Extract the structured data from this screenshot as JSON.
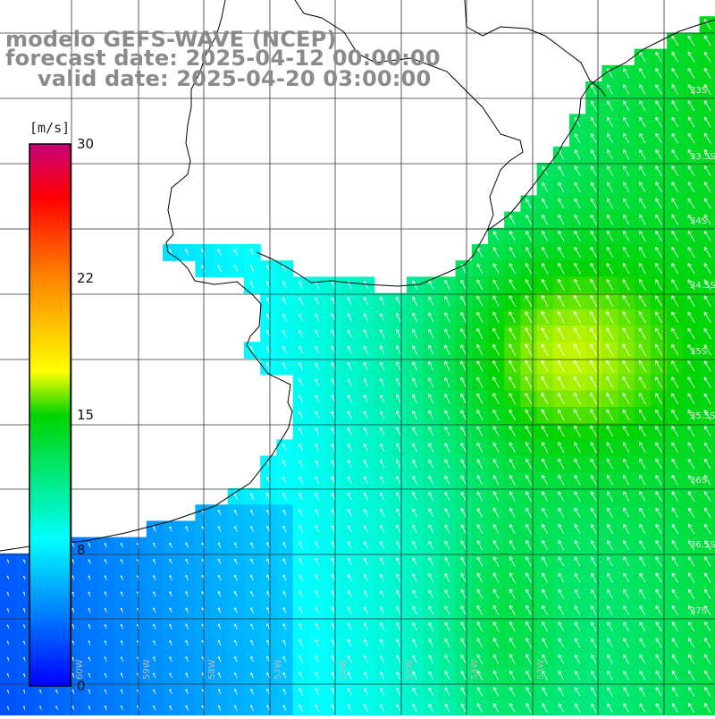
{
  "title": {
    "model": "modelo GEFS-WAVE (NCEP)",
    "forecast": "forecast date: 2025-04-12 00:00:00",
    "valid": "valid date: 2025-04-20 03:00:00"
  },
  "colorbar": {
    "unit": "[m/s]",
    "ticks": [
      "30",
      "22",
      "15",
      "8",
      "0"
    ],
    "colors": [
      "#c8007a",
      "#ff0000",
      "#ff7f00",
      "#ffff00",
      "#00d400",
      "#00ffff",
      "#0000ff"
    ]
  },
  "map_labels": {
    "longitudes": [
      "60W",
      "59W",
      "58W",
      "57W",
      "56W",
      "55W",
      "54W",
      "53W"
    ],
    "latitudes": [
      "33S",
      "33.5S",
      "34S",
      "34.5S",
      "35S",
      "35.5S",
      "36S",
      "36.5S",
      "37S"
    ]
  },
  "colors": {
    "land": "#ffffff",
    "grid": "#222222",
    "coast": "#000000",
    "arrow": "#ffffff"
  }
}
